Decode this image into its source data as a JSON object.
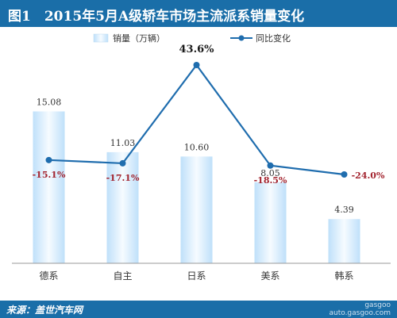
{
  "header": {
    "title": "图1　2015年5月A级轿车市场主流派系销量变化"
  },
  "chart_data": {
    "type": "bar+line",
    "title": "图1　2015年5月A级轿车市场主流派系销量变化",
    "categories": [
      "德系",
      "自主",
      "日系",
      "美系",
      "韩系"
    ],
    "series": [
      {
        "name": "销量（万辆）",
        "type": "bar",
        "values": [
          15.08,
          11.03,
          10.6,
          8.05,
          4.39
        ],
        "labels": [
          "15.08",
          "11.03",
          "10.60",
          "8.05",
          "4.39"
        ]
      },
      {
        "name": "同比变化",
        "type": "line",
        "values": [
          -15.1,
          -17.1,
          43.6,
          -18.5,
          -24.0
        ],
        "labels": [
          "-15.1%",
          "-17.1%",
          "43.6%",
          "-18.5%",
          "-24.0%"
        ]
      }
    ],
    "legend": "top",
    "grid": false,
    "colors": {
      "bar": "#cfe7fb",
      "line": "#1f6dae",
      "negative_label": "#a3242f",
      "positive_label": "#1a1a1a"
    }
  },
  "footer": {
    "source": "来源：盖世汽车网",
    "watermark_name": "gasgoo",
    "watermark_url": "auto.gasgoo.com"
  }
}
